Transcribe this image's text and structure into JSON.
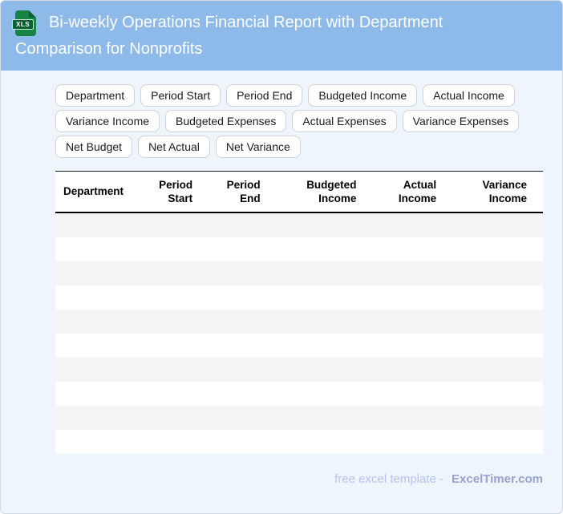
{
  "header": {
    "title": "Bi-weekly Operations Financial Report with Department Comparison for Nonprofits",
    "file_badge": "XLS"
  },
  "column_chips": [
    "Department",
    "Period Start",
    "Period End",
    "Budgeted Income",
    "Actual Income",
    "Variance Income",
    "Budgeted Expenses",
    "Actual Expenses",
    "Variance Expenses",
    "Net Budget",
    "Net Actual",
    "Net Variance"
  ],
  "table": {
    "columns": [
      {
        "label": "Department",
        "align": "left",
        "width": "16.7%"
      },
      {
        "label": "Period Start",
        "align": "right",
        "width": "13.1%"
      },
      {
        "label": "Period End",
        "align": "right",
        "width": "13.9%"
      },
      {
        "label": "Budgeted Income",
        "align": "right",
        "width": "19.7%"
      },
      {
        "label": "Actual Income",
        "align": "right",
        "width": "16.4%"
      },
      {
        "label": "Variance Income",
        "align": "right",
        "width": "20.2%"
      }
    ],
    "empty_row_count": 10
  },
  "footer": {
    "text": "free excel template -",
    "brand": "ExcelTimer.com"
  },
  "colors": {
    "header_bg": "#8dbae9",
    "page_bg": "#eef5fd",
    "row_stripe": "#f5f5f6",
    "icon_green": "#168445",
    "icon_green_dark": "#0c6233",
    "footer_text": "#b6c3ee",
    "footer_brand": "#99a3cd"
  }
}
